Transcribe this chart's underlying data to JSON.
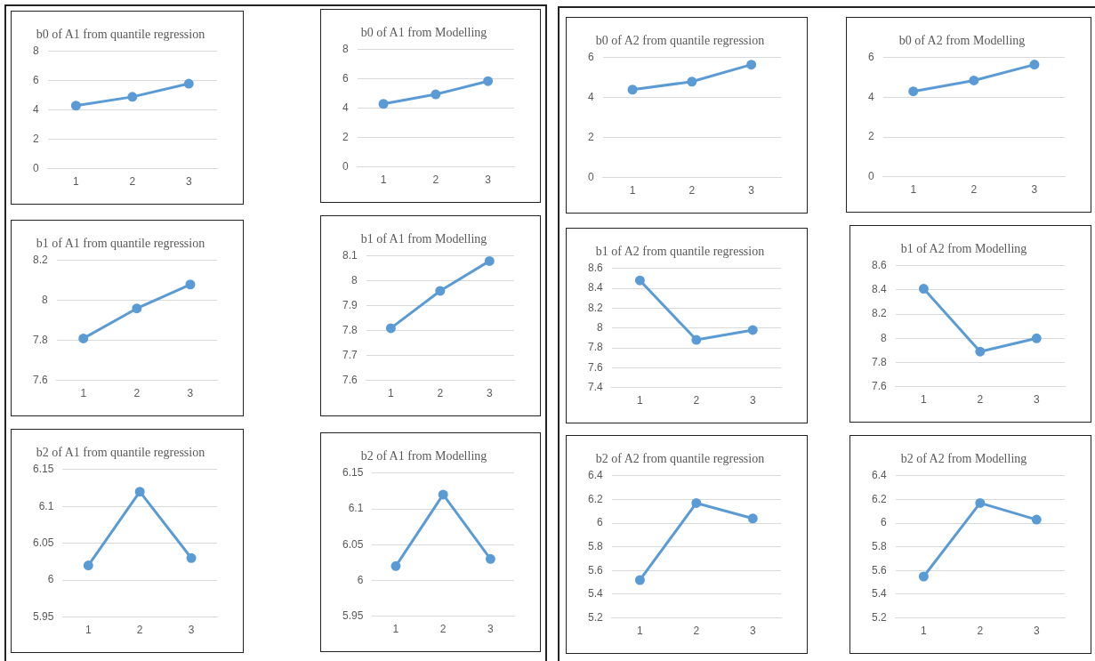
{
  "chart_data": [
    {
      "type": "line",
      "title": "b0 of A1 from quantile regression",
      "categories": [
        "1",
        "2",
        "3"
      ],
      "values": [
        4.3,
        4.9,
        5.8
      ],
      "color": "#5b9bd5",
      "ylim": [
        0,
        8
      ],
      "yticks": [
        0,
        2,
        4,
        6,
        8
      ],
      "grid": "y",
      "marker": "circle",
      "legend": false
    },
    {
      "type": "line",
      "title": "b0 of A1 from Modelling",
      "categories": [
        "1",
        "2",
        "3"
      ],
      "values": [
        4.3,
        4.95,
        5.85
      ],
      "color": "#5b9bd5",
      "ylim": [
        0,
        8
      ],
      "yticks": [
        0,
        2,
        4,
        6,
        8
      ],
      "grid": "y",
      "marker": "circle",
      "legend": false
    },
    {
      "type": "line",
      "title": "b0 of A2 from quantile regression",
      "categories": [
        "1",
        "2",
        "3"
      ],
      "values": [
        4.4,
        4.8,
        5.65
      ],
      "color": "#5b9bd5",
      "ylim": [
        0,
        6
      ],
      "yticks": [
        0,
        2,
        4,
        6
      ],
      "grid": "y",
      "marker": "circle",
      "legend": false
    },
    {
      "type": "line",
      "title": "b0 of A2 from Modelling",
      "categories": [
        "1",
        "2",
        "3"
      ],
      "values": [
        4.3,
        4.85,
        5.65
      ],
      "color": "#5b9bd5",
      "ylim": [
        0,
        6
      ],
      "yticks": [
        0,
        2,
        4,
        6
      ],
      "grid": "y",
      "marker": "circle",
      "legend": false
    },
    {
      "type": "line",
      "title": "b1 of A1 from quantile regression",
      "categories": [
        "1",
        "2",
        "3"
      ],
      "values": [
        7.81,
        7.96,
        8.08
      ],
      "color": "#5b9bd5",
      "ylim": [
        7.6,
        8.2
      ],
      "yticks": [
        7.6,
        7.8,
        8,
        8.2
      ],
      "grid": "y",
      "marker": "circle",
      "legend": false
    },
    {
      "type": "line",
      "title": "b1 of A1 from Modelling",
      "categories": [
        "1",
        "2",
        "3"
      ],
      "values": [
        7.81,
        7.96,
        8.08
      ],
      "color": "#5b9bd5",
      "ylim": [
        7.6,
        8.1
      ],
      "yticks": [
        7.6,
        7.7,
        7.8,
        7.9,
        8,
        8.1
      ],
      "grid": "y",
      "marker": "circle",
      "legend": false
    },
    {
      "type": "line",
      "title": "b1 of A2 from quantile regression",
      "categories": [
        "1",
        "2",
        "3"
      ],
      "values": [
        8.48,
        7.88,
        7.98
      ],
      "color": "#5b9bd5",
      "ylim": [
        7.4,
        8.6
      ],
      "yticks": [
        7.4,
        7.6,
        7.8,
        8,
        8.2,
        8.4,
        8.6
      ],
      "grid": "y",
      "marker": "circle",
      "legend": false
    },
    {
      "type": "line",
      "title": "b1 of A2 from Modelling",
      "categories": [
        "1",
        "2",
        "3"
      ],
      "values": [
        8.41,
        7.89,
        8.0
      ],
      "color": "#5b9bd5",
      "ylim": [
        7.6,
        8.6
      ],
      "yticks": [
        7.6,
        7.8,
        8,
        8.2,
        8.4,
        8.6
      ],
      "grid": "y",
      "marker": "circle",
      "legend": false
    },
    {
      "type": "line",
      "title": "b2 of A1 from quantile regression",
      "categories": [
        "1",
        "2",
        "3"
      ],
      "values": [
        6.02,
        6.12,
        6.03
      ],
      "color": "#5b9bd5",
      "ylim": [
        5.95,
        6.15
      ],
      "yticks": [
        5.95,
        6,
        6.05,
        6.1,
        6.15
      ],
      "grid": "y",
      "marker": "circle",
      "legend": false
    },
    {
      "type": "line",
      "title": "b2 of A1 from Modelling",
      "categories": [
        "1",
        "2",
        "3"
      ],
      "values": [
        6.02,
        6.12,
        6.03
      ],
      "color": "#5b9bd5",
      "ylim": [
        5.95,
        6.15
      ],
      "yticks": [
        5.95,
        6,
        6.05,
        6.1,
        6.15
      ],
      "grid": "y",
      "marker": "circle",
      "legend": false
    },
    {
      "type": "line",
      "title": "b2 of A2 from quantile regression",
      "categories": [
        "1",
        "2",
        "3"
      ],
      "values": [
        5.52,
        6.17,
        6.04
      ],
      "color": "#5b9bd5",
      "ylim": [
        5.2,
        6.4
      ],
      "yticks": [
        5.2,
        5.4,
        5.6,
        5.8,
        6,
        6.2,
        6.4
      ],
      "grid": "y",
      "marker": "circle",
      "legend": false
    },
    {
      "type": "line",
      "title": "b2 of A2 from Modelling",
      "categories": [
        "1",
        "2",
        "3"
      ],
      "values": [
        5.55,
        6.17,
        6.03
      ],
      "color": "#5b9bd5",
      "ylim": [
        5.2,
        6.4
      ],
      "yticks": [
        5.2,
        5.4,
        5.6,
        5.8,
        6,
        6.2,
        6.4
      ],
      "grid": "y",
      "marker": "circle",
      "legend": false
    }
  ]
}
